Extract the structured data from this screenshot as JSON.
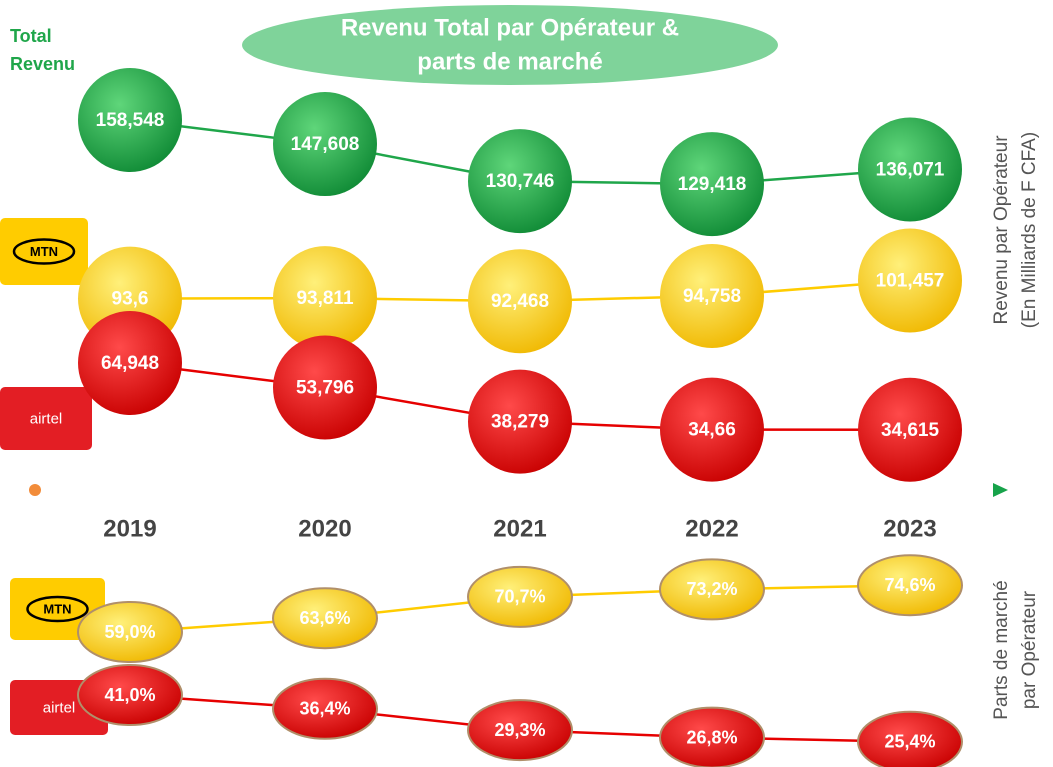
{
  "title_lines": [
    "Revenu Total par Opérateur &",
    "parts de marché"
  ],
  "chart_data": [
    {
      "type": "line",
      "categories": [
        "2019",
        "2020",
        "2021",
        "2022",
        "2023"
      ],
      "y_label_lines": [
        "Revenu par Opérateur",
        "(En Milliards de F CFA)"
      ],
      "series": [
        {
          "name": "Total Revenu",
          "color": "#1fa64a",
          "values": [
            158.548,
            147.608,
            130.746,
            129.418,
            136.071
          ],
          "value_labels": [
            "158,548",
            "147,608",
            "130,746",
            "129,418",
            "136,071"
          ]
        },
        {
          "name": "MTN",
          "color": "#ffcc00",
          "values": [
            93.6,
            93.811,
            92.468,
            94.758,
            101.457
          ],
          "value_labels": [
            "93,6",
            "93,811",
            "92,468",
            "94,758",
            "101,457"
          ]
        },
        {
          "name": "airtel",
          "color": "#e60000",
          "values": [
            64.948,
            53.796,
            38.279,
            34.66,
            34.615
          ],
          "value_labels": [
            "64,948",
            "53,796",
            "38,279",
            "34,66",
            "34,615"
          ]
        }
      ]
    },
    {
      "type": "line",
      "y_label_lines": [
        "Parts de marché",
        "par Opérateur"
      ],
      "series": [
        {
          "name": "MTN",
          "color": "#ffcc00",
          "values": [
            59.0,
            63.6,
            70.7,
            73.2,
            74.6
          ],
          "value_labels": [
            "59,0%",
            "63,6%",
            "70,7%",
            "73,2%",
            "74,6%"
          ]
        },
        {
          "name": "airtel",
          "color": "#e60000",
          "values": [
            41.0,
            36.4,
            29.3,
            26.8,
            25.4
          ],
          "value_labels": [
            "41,0%",
            "36,4%",
            "29,3%",
            "26,8%",
            "25,4%"
          ]
        }
      ]
    }
  ]
}
